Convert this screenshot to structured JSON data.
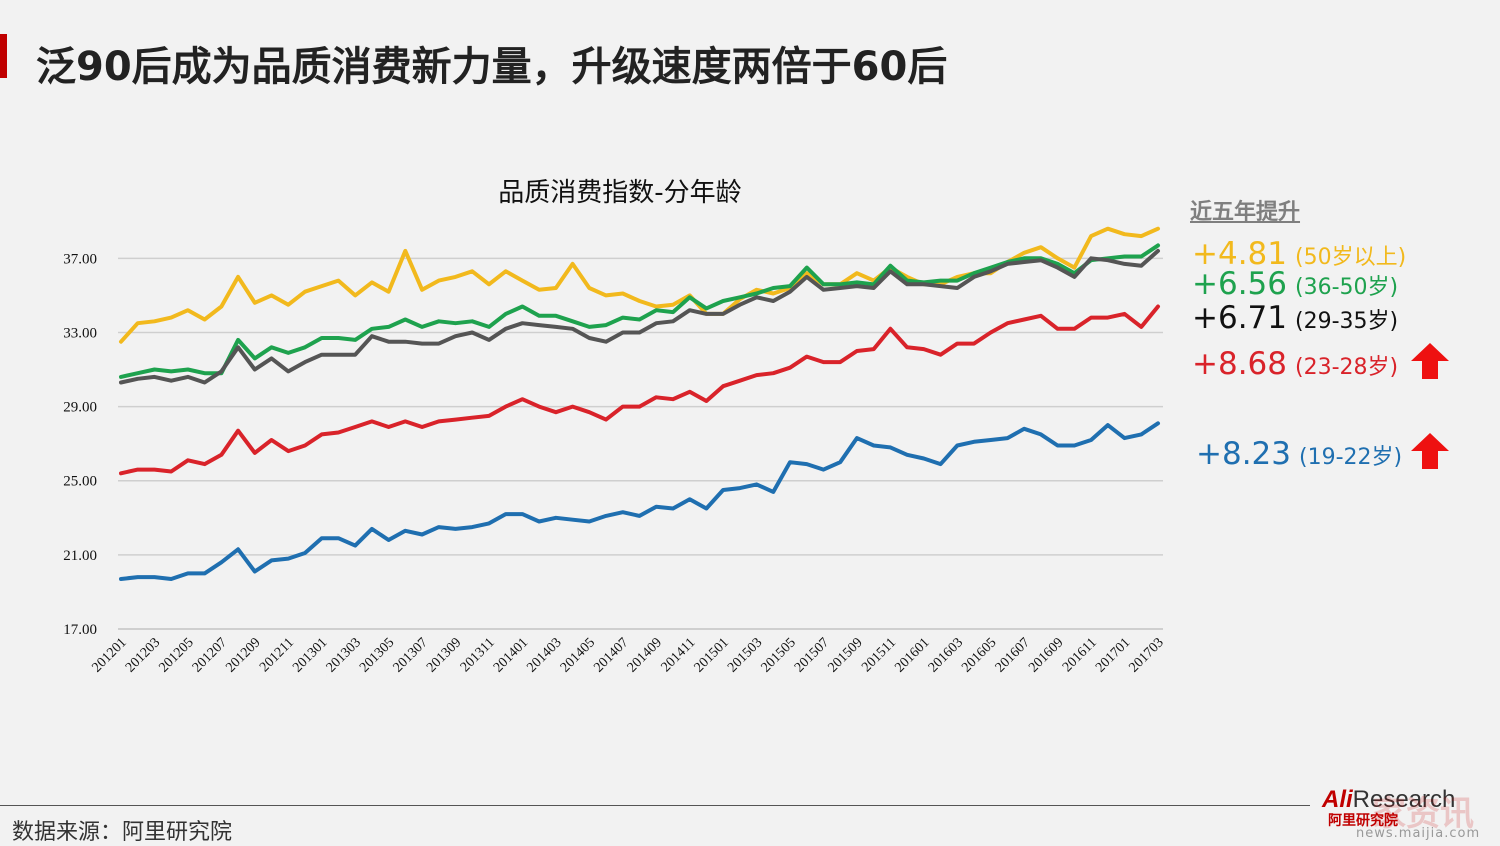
{
  "header": {
    "title": "泛90后成为品质消费新力量，升级速度两倍于60后"
  },
  "footer": {
    "source": "数据来源：阿里研究院"
  },
  "logo": {
    "main_prefix": "Ali",
    "main_suffix": "Research",
    "sub": "阿里研究院",
    "watermark": "家资讯",
    "watermark_url": "news.maijia.com"
  },
  "growth_panel": {
    "header": "近五年提升",
    "items": [
      {
        "value": "+4.81",
        "label": "(50岁以上)",
        "color": "#f2b91d",
        "arrow": false
      },
      {
        "value": "+6.56",
        "label": "(36-50岁)",
        "color": "#1ea24e",
        "arrow": false
      },
      {
        "value": "+6.71",
        "label": "(29-35岁)",
        "color": "#111111",
        "arrow": false
      },
      {
        "value": "+8.68",
        "label": "(23-28岁)",
        "color": "#d9232a",
        "arrow": true
      },
      {
        "value": "+8.23",
        "label": "(19-22岁)",
        "color": "#1f6fb0",
        "arrow": true
      }
    ],
    "arrow_color": "#ee1111"
  },
  "chart_data": {
    "type": "line",
    "title": "品质消费指数-分年龄",
    "xlabel": "",
    "ylabel": "",
    "ylim": [
      17,
      39.5
    ],
    "yticks": [
      "17.00",
      "21.00",
      "25.00",
      "29.00",
      "33.00",
      "37.00"
    ],
    "grid": true,
    "legend": "none",
    "x_tick_labels": [
      "201201",
      "201203",
      "201205",
      "201207",
      "201209",
      "201211",
      "201301",
      "201303",
      "201305",
      "201307",
      "201309",
      "201311",
      "201401",
      "201403",
      "201405",
      "201407",
      "201409",
      "201411",
      "201501",
      "201503",
      "201505",
      "201507",
      "201509",
      "201511",
      "201601",
      "201603",
      "201605",
      "201607",
      "201609",
      "201611",
      "201701",
      "201703"
    ],
    "x": [
      "201201",
      "201202",
      "201203",
      "201204",
      "201205",
      "201206",
      "201207",
      "201208",
      "201209",
      "201210",
      "201211",
      "201212",
      "201301",
      "201302",
      "201303",
      "201304",
      "201305",
      "201306",
      "201307",
      "201308",
      "201309",
      "201310",
      "201311",
      "201312",
      "201401",
      "201402",
      "201403",
      "201404",
      "201405",
      "201406",
      "201407",
      "201408",
      "201409",
      "201410",
      "201411",
      "201412",
      "201501",
      "201502",
      "201503",
      "201504",
      "201505",
      "201506",
      "201507",
      "201508",
      "201509",
      "201510",
      "201511",
      "201512",
      "201601",
      "201602",
      "201603",
      "201604",
      "201605",
      "201606",
      "201607",
      "201608",
      "201609",
      "201610",
      "201611",
      "201612",
      "201701",
      "201702",
      "201703"
    ],
    "series": [
      {
        "color": "#f2b91d",
        "values": [
          32.5,
          33.5,
          33.6,
          33.8,
          34.2,
          33.7,
          34.4,
          36.0,
          34.6,
          35.0,
          34.5,
          35.2,
          35.5,
          35.8,
          35.0,
          35.7,
          35.2,
          37.4,
          35.3,
          35.8,
          36.0,
          36.3,
          35.6,
          36.3,
          35.8,
          35.3,
          35.4,
          36.7,
          35.4,
          35.0,
          35.1,
          34.7,
          34.4,
          34.5,
          35.0,
          34.0,
          34.0,
          34.8,
          35.3,
          35.1,
          35.4,
          36.2,
          35.6,
          35.6,
          36.2,
          35.8,
          36.5,
          36.0,
          35.6,
          35.6,
          36.0,
          36.2,
          36.2,
          36.8,
          37.3,
          37.6,
          37.0,
          36.5,
          38.2,
          38.6,
          38.3,
          38.2,
          38.6
        ]
      },
      {
        "color": "#1ea24e",
        "values": [
          30.6,
          30.8,
          31.0,
          30.9,
          31.0,
          30.8,
          30.8,
          32.6,
          31.6,
          32.2,
          31.9,
          32.2,
          32.7,
          32.7,
          32.6,
          33.2,
          33.3,
          33.7,
          33.3,
          33.6,
          33.5,
          33.6,
          33.3,
          34.0,
          34.4,
          33.9,
          33.9,
          33.6,
          33.3,
          33.4,
          33.8,
          33.7,
          34.2,
          34.1,
          34.9,
          34.3,
          34.7,
          34.9,
          35.1,
          35.4,
          35.5,
          36.5,
          35.6,
          35.6,
          35.7,
          35.6,
          36.6,
          35.8,
          35.7,
          35.8,
          35.8,
          36.2,
          36.5,
          36.8,
          37.0,
          37.0,
          36.7,
          36.2,
          36.9,
          37.0,
          37.1,
          37.1,
          37.7
        ]
      },
      {
        "color": "#555555",
        "values": [
          30.3,
          30.5,
          30.6,
          30.4,
          30.6,
          30.3,
          30.9,
          32.2,
          31.0,
          31.6,
          30.9,
          31.4,
          31.8,
          31.8,
          31.8,
          32.8,
          32.5,
          32.5,
          32.4,
          32.4,
          32.8,
          33.0,
          32.6,
          33.2,
          33.5,
          33.4,
          33.3,
          33.2,
          32.7,
          32.5,
          33.0,
          33.0,
          33.5,
          33.6,
          34.2,
          34.0,
          34.0,
          34.5,
          34.9,
          34.7,
          35.2,
          36.0,
          35.3,
          35.4,
          35.5,
          35.4,
          36.3,
          35.6,
          35.6,
          35.5,
          35.4,
          36.0,
          36.3,
          36.7,
          36.8,
          36.9,
          36.5,
          36.0,
          37.0,
          36.9,
          36.7,
          36.6,
          37.4
        ]
      },
      {
        "color": "#d9232a",
        "values": [
          25.4,
          25.6,
          25.6,
          25.5,
          26.1,
          25.9,
          26.4,
          27.7,
          26.5,
          27.2,
          26.6,
          26.9,
          27.5,
          27.6,
          27.9,
          28.2,
          27.9,
          28.2,
          27.9,
          28.2,
          28.3,
          28.4,
          28.5,
          29.0,
          29.4,
          29.0,
          28.7,
          29.0,
          28.7,
          28.3,
          29.0,
          29.0,
          29.5,
          29.4,
          29.8,
          29.3,
          30.1,
          30.4,
          30.7,
          30.8,
          31.1,
          31.7,
          31.4,
          31.4,
          32.0,
          32.1,
          33.2,
          32.2,
          32.1,
          31.8,
          32.4,
          32.4,
          33.0,
          33.5,
          33.7,
          33.9,
          33.2,
          33.2,
          33.8,
          33.8,
          34.0,
          33.3,
          34.4
        ]
      },
      {
        "color": "#1f6fb0",
        "values": [
          19.7,
          19.8,
          19.8,
          19.7,
          20.0,
          20.0,
          20.6,
          21.3,
          20.1,
          20.7,
          20.8,
          21.1,
          21.9,
          21.9,
          21.5,
          22.4,
          21.8,
          22.3,
          22.1,
          22.5,
          22.4,
          22.5,
          22.7,
          23.2,
          23.2,
          22.8,
          23.0,
          22.9,
          22.8,
          23.1,
          23.3,
          23.1,
          23.6,
          23.5,
          24.0,
          23.5,
          24.5,
          24.6,
          24.8,
          24.4,
          26.0,
          25.9,
          25.6,
          26.0,
          27.3,
          26.9,
          26.8,
          26.4,
          26.2,
          25.9,
          26.9,
          27.1,
          27.2,
          27.3,
          27.8,
          27.5,
          26.9,
          26.9,
          27.2,
          28.0,
          27.3,
          27.5,
          28.1
        ]
      }
    ]
  }
}
